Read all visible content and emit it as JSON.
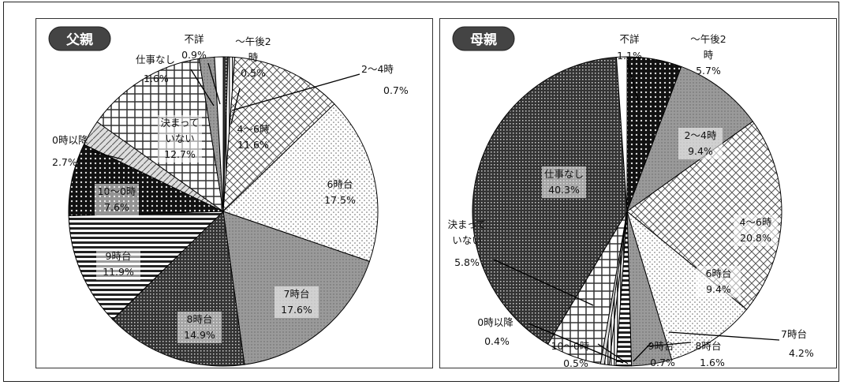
{
  "colors": {
    "border": "#222222",
    "badge": "#444444",
    "badge_text": "#ffffff",
    "leader": "#000000"
  },
  "chart_data": [
    {
      "type": "pie",
      "title": "父親",
      "slices": [
        {
          "label": "～午後2時",
          "value": 0.5,
          "value_label": "0.5%"
        },
        {
          "label": "2～4時",
          "value": 0.7,
          "value_label": "0.7%"
        },
        {
          "label": "4～6時",
          "value": 11.6,
          "value_label": "11.6%"
        },
        {
          "label": "6時台",
          "value": 17.5,
          "value_label": "17.5%"
        },
        {
          "label": "7時台",
          "value": 17.6,
          "value_label": "17.6%"
        },
        {
          "label": "8時台",
          "value": 14.9,
          "value_label": "14.9%"
        },
        {
          "label": "9時台",
          "value": 11.9,
          "value_label": "11.9%"
        },
        {
          "label": "10～0時",
          "value": 7.6,
          "value_label": "7.6%"
        },
        {
          "label": "0時以降",
          "value": 2.7,
          "value_label": "2.7%"
        },
        {
          "label": "決まっていない",
          "value": 12.7,
          "value_label": "12.7%"
        },
        {
          "label": "仕事なし",
          "value": 1.6,
          "value_label": "1.6%"
        },
        {
          "label": "不詳",
          "value": 0.9,
          "value_label": "0.9%"
        }
      ]
    },
    {
      "type": "pie",
      "title": "母親",
      "slices": [
        {
          "label": "～午後2時",
          "value": 5.7,
          "value_label": "5.7%"
        },
        {
          "label": "2～4時",
          "value": 9.4,
          "value_label": "9.4%"
        },
        {
          "label": "4～6時",
          "value": 20.8,
          "value_label": "20.8%"
        },
        {
          "label": "6時台",
          "value": 9.4,
          "value_label": "9.4%"
        },
        {
          "label": "7時台",
          "value": 4.2,
          "value_label": "4.2%"
        },
        {
          "label": "8時台",
          "value": 1.6,
          "value_label": "1.6%"
        },
        {
          "label": "9時台",
          "value": 0.7,
          "value_label": "0.7%"
        },
        {
          "label": "10～0時",
          "value": 0.5,
          "value_label": "0.5%"
        },
        {
          "label": "0時以降",
          "value": 0.4,
          "value_label": "0.4%"
        },
        {
          "label": "決まっていない",
          "value": 5.8,
          "value_label": "5.8%"
        },
        {
          "label": "仕事なし",
          "value": 40.3,
          "value_label": "40.3%"
        },
        {
          "label": "不詳",
          "value": 1.1,
          "value_label": "1.1%"
        }
      ]
    }
  ]
}
